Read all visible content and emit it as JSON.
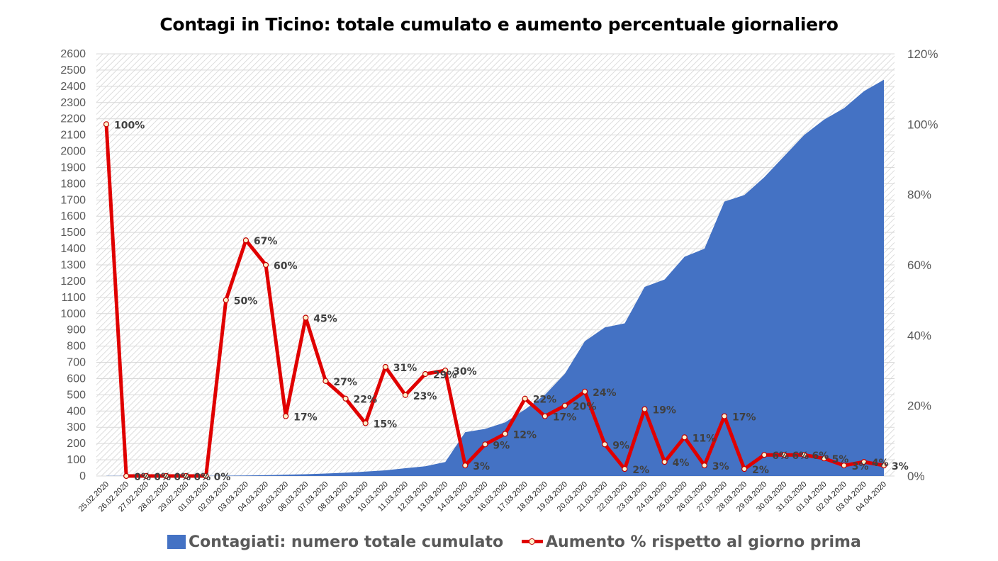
{
  "chart_data": {
    "type": "area+line",
    "title": "Contagi in Ticino: totale cumulato e aumento percentuale giornaliero",
    "categories": [
      "25.02.2020",
      "26.02.2020",
      "27.02.2020",
      "28.02.2020",
      "29.02.2020",
      "01.03.2020",
      "02.03.2020",
      "03.03.2020",
      "04.03.2020",
      "05.03.2020",
      "06.03.2020",
      "07.03.2020",
      "08.03.2020",
      "09.03.2020",
      "10.03.2020",
      "11.03.2020",
      "12.03.2020",
      "13.03.2020",
      "14.03.2020",
      "15.03.2020",
      "16.03.2020",
      "17.03.2020",
      "18.03.2020",
      "19.03.2020",
      "20.03.2020",
      "21.03.2020",
      "22.03.2020",
      "23.03.2020",
      "24.03.2020",
      "25.03.2020",
      "26.03.2020",
      "27.03.2020",
      "28.03.2020",
      "29.03.2020",
      "30.03.2020",
      "31.03.2020",
      "01.04.2020",
      "02.04.2020",
      "03.04.2020",
      "04.04.2020"
    ],
    "y_left": {
      "ylim": [
        0,
        2600
      ],
      "ticks": [
        "0",
        "100",
        "200",
        "300",
        "400",
        "500",
        "600",
        "700",
        "800",
        "900",
        "1000",
        "1100",
        "1200",
        "1300",
        "1400",
        "1500",
        "1600",
        "1700",
        "1800",
        "1900",
        "2000",
        "2100",
        "2200",
        "2300",
        "2400",
        "2500",
        "2600"
      ]
    },
    "y_right": {
      "ylim": [
        0,
        120
      ],
      "ticks": [
        "0%",
        "20%",
        "40%",
        "60%",
        "80%",
        "100%",
        "120%"
      ]
    },
    "series": [
      {
        "name": "Contagiati: numero totale cumulato",
        "kind": "area",
        "axis": "left",
        "color": "#4472c4",
        "values": [
          1,
          1,
          1,
          1,
          1,
          1,
          2,
          3,
          5,
          8,
          11,
          15,
          20,
          27,
          35,
          48,
          60,
          86,
          270,
          290,
          330,
          410,
          500,
          630,
          830,
          915,
          940,
          1165,
          1210,
          1350,
          1400,
          1690,
          1730,
          1840,
          1970,
          2100,
          2195,
          2265,
          2370,
          2440
        ]
      },
      {
        "name": "Aumento % rispetto al giorno prima",
        "kind": "line",
        "axis": "right",
        "color": "#e00000",
        "values": [
          100,
          0,
          0,
          0,
          0,
          0,
          50,
          67,
          60,
          17,
          45,
          27,
          22,
          15,
          31,
          23,
          29,
          30,
          3,
          9,
          12,
          22,
          17,
          20,
          24,
          9,
          2,
          19,
          4,
          11,
          3,
          17,
          2,
          6,
          6,
          6,
          5,
          3,
          4,
          3
        ],
        "labels": [
          "100%",
          "0%",
          "0%",
          "0%",
          "0%",
          "0%",
          "50%",
          "67%",
          "60%",
          "17%",
          "45%",
          "27%",
          "22%",
          "15%",
          "31%",
          "23%",
          "29%",
          "30%",
          "3%",
          "9%",
          "12%",
          "22%",
          "17%",
          "20%",
          "24%",
          "9%",
          "2%",
          "19%",
          "4%",
          "11%",
          "3%",
          "17%",
          "2%",
          "6%",
          "6%",
          "6%",
          "5%",
          "3%",
          "4%",
          "3%"
        ]
      }
    ],
    "grid": true,
    "legend": "bottom"
  }
}
